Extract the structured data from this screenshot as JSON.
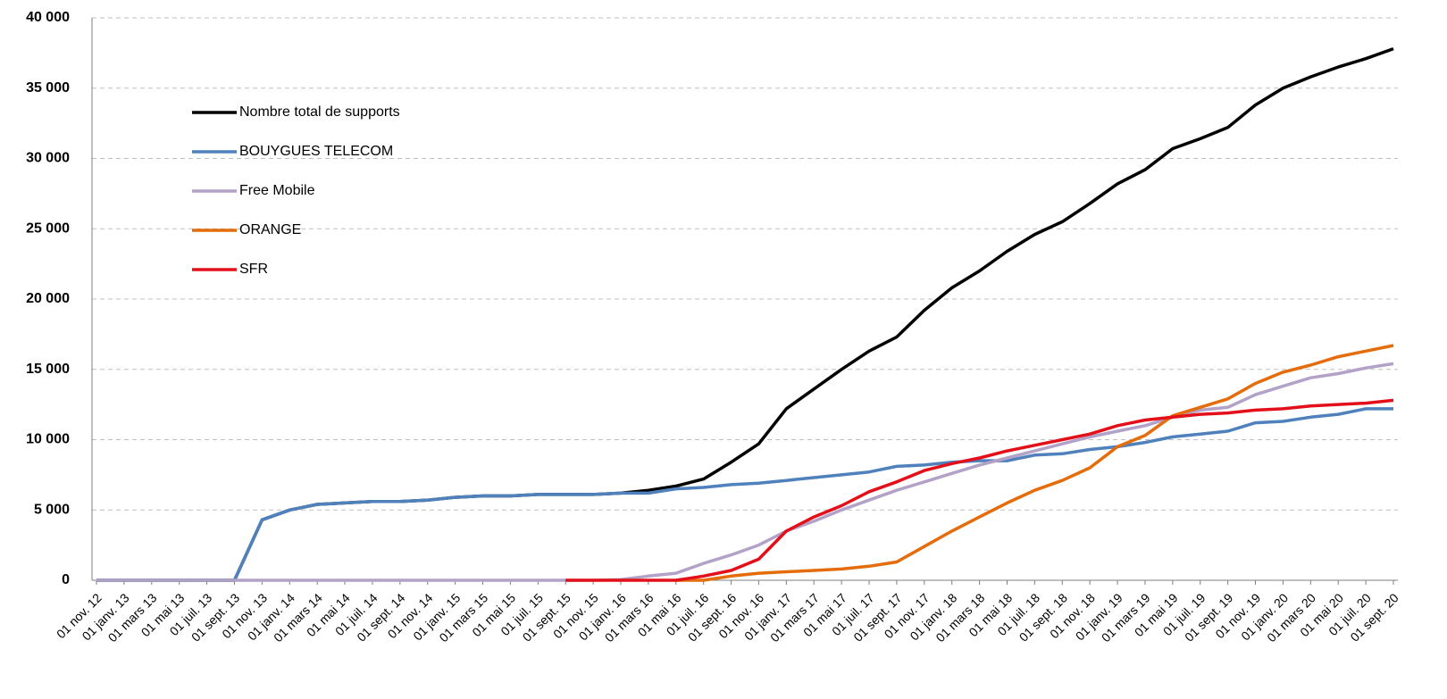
{
  "chart_data": {
    "type": "line",
    "categories": [
      "01 nov. 12",
      "01 janv. 13",
      "01 mars 13",
      "01 mai 13",
      "01 juil. 13",
      "01 sept. 13",
      "01 nov. 13",
      "01 janv. 14",
      "01 mars 14",
      "01 mai 14",
      "01 juil. 14",
      "01 sept. 14",
      "01 nov. 14",
      "01 janv. 15",
      "01 mars 15",
      "01 mai 15",
      "01 juil. 15",
      "01 sept. 15",
      "01 nov. 15",
      "01 janv. 16",
      "01 mars 16",
      "01 mai 16",
      "01 juil. 16",
      "01 sept. 16",
      "01 nov. 16",
      "01 janv. 17",
      "01 mars 17",
      "01 mai 17",
      "01 juil. 17",
      "01 sept. 17",
      "01 nov. 17",
      "01 janv. 18",
      "01 mars 18",
      "01 mai 18",
      "01 juil. 18",
      "01 sept. 18",
      "01 nov. 18",
      "01 janv. 19",
      "01 mars 19",
      "01 mai 19",
      "01 juil. 19",
      "01 sept. 19",
      "01 nov. 19",
      "01 janv. 20",
      "01 mars 20",
      "01 mai 20",
      "01 juil. 20",
      "01 sept. 20"
    ],
    "series": [
      {
        "name": "Nombre total de supports",
        "color": "#000000",
        "values": [
          0,
          0,
          0,
          0,
          0,
          0,
          4300,
          5000,
          5400,
          5500,
          5600,
          5600,
          5700,
          5900,
          6000,
          6000,
          6100,
          6100,
          6100,
          6200,
          6400,
          6700,
          7200,
          8400,
          9700,
          12200,
          13600,
          15000,
          16300,
          17300,
          19200,
          20800,
          22000,
          23400,
          24600,
          25500,
          26800,
          28200,
          29200,
          30700,
          31400,
          32200,
          33800,
          35000,
          35800,
          36500,
          37100,
          37800
        ]
      },
      {
        "name": "BOUYGUES TELECOM",
        "color": "#4f81bd",
        "values": [
          0,
          0,
          0,
          0,
          0,
          0,
          4300,
          5000,
          5400,
          5500,
          5600,
          5600,
          5700,
          5900,
          6000,
          6000,
          6100,
          6100,
          6100,
          6200,
          6200,
          6500,
          6600,
          6800,
          6900,
          7100,
          7300,
          7500,
          7700,
          8100,
          8200,
          8400,
          8500,
          8500,
          8900,
          9000,
          9300,
          9500,
          9800,
          10200,
          10400,
          10600,
          11200,
          11300,
          11600,
          11800,
          12200,
          12200
        ]
      },
      {
        "name": "Free Mobile",
        "color": "#b3a2c7",
        "values": [
          0,
          0,
          0,
          0,
          0,
          0,
          0,
          0,
          0,
          0,
          0,
          0,
          0,
          0,
          0,
          0,
          0,
          0,
          0,
          50,
          300,
          500,
          1200,
          1800,
          2500,
          3500,
          4200,
          5000,
          5700,
          6400,
          7000,
          7600,
          8200,
          8700,
          9200,
          9700,
          10200,
          10600,
          11000,
          11600,
          12100,
          12300,
          13200,
          13800,
          14400,
          14700,
          15100,
          15400
        ]
      },
      {
        "name": "ORANGE",
        "color": "#e46c0a",
        "values": [
          null,
          null,
          null,
          null,
          null,
          null,
          null,
          null,
          null,
          null,
          null,
          null,
          null,
          null,
          null,
          null,
          null,
          null,
          null,
          null,
          null,
          0,
          0,
          300,
          500,
          600,
          700,
          800,
          1000,
          1300,
          2400,
          3500,
          4500,
          5500,
          6400,
          7100,
          8000,
          9500,
          10300,
          11700,
          12300,
          12900,
          14000,
          14800,
          15300,
          15900,
          16300,
          16700
        ]
      },
      {
        "name": "SFR",
        "color": "#e3101a",
        "values": [
          null,
          null,
          null,
          null,
          null,
          null,
          null,
          null,
          null,
          null,
          null,
          null,
          null,
          null,
          null,
          null,
          null,
          0,
          0,
          0,
          0,
          0,
          300,
          700,
          1500,
          3500,
          4500,
          5300,
          6300,
          7000,
          7800,
          8300,
          8700,
          9200,
          9600,
          10000,
          10400,
          11000,
          11400,
          11600,
          11800,
          11900,
          12100,
          12200,
          12400,
          12500,
          12600,
          12800
        ]
      }
    ],
    "ylim": [
      0,
      40000
    ],
    "yticks": [
      {
        "value": 0,
        "label": "0"
      },
      {
        "value": 5000,
        "label": "5 000"
      },
      {
        "value": 10000,
        "label": "10 000"
      },
      {
        "value": 15000,
        "label": "15 000"
      },
      {
        "value": 20000,
        "label": "20 000"
      },
      {
        "value": 25000,
        "label": "25 000"
      },
      {
        "value": 30000,
        "label": "30 000"
      },
      {
        "value": 35000,
        "label": "35 000"
      },
      {
        "value": 40000,
        "label": "40 000"
      }
    ],
    "grid": true,
    "legend": "upper left"
  }
}
